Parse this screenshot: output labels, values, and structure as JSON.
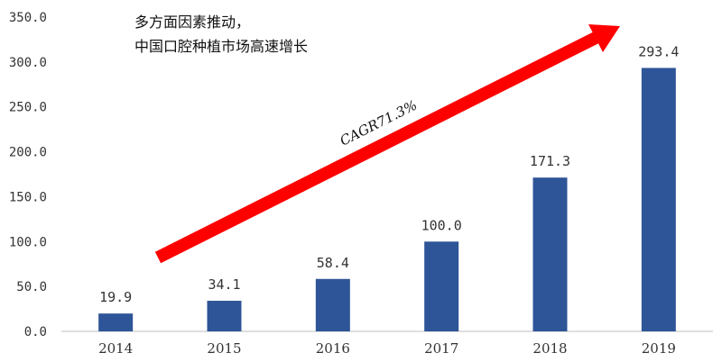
{
  "chart_data": {
    "type": "bar",
    "categories": [
      "2014",
      "2015",
      "2016",
      "2017",
      "2018",
      "2019"
    ],
    "values": [
      19.9,
      34.1,
      58.4,
      100.0,
      171.3,
      293.4
    ],
    "value_labels": [
      "19.9",
      "34.1",
      "58.4",
      "100.0",
      "171.3",
      "293.4"
    ],
    "yticks": [
      "0.0",
      "50.0",
      "100.0",
      "150.0",
      "200.0",
      "250.0",
      "300.0",
      "350.0"
    ],
    "ylim": [
      0,
      350
    ],
    "grid": false,
    "bar_color": "#2E5597",
    "annotations": {
      "headline_line1": "多方面因素推动，",
      "headline_line2": "中国口腔种植市场高速增长",
      "arrow_label": "CAGR71.3%",
      "arrow_color": "#FF0000"
    }
  }
}
